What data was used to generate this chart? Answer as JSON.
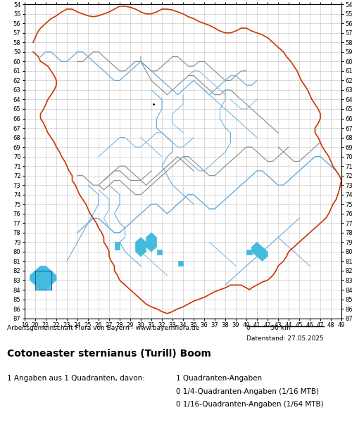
{
  "title": "Cotoneaster sternianus (Turill) Boom",
  "attribution": "Arbeitsgemeinschaft Flora von Bayern - www.bayernflora.de",
  "scale_label": "0          50 km",
  "date_label": "Datenstand: 27.05.2025",
  "stats_line1": "1 Angaben aus 1 Quadranten, davon:",
  "stats_col2_line1": "1 Quadranten-Angaben",
  "stats_col2_line2": "0 1/4-Quadranten-Angaben (1/16 MTB)",
  "stats_col2_line3": "0 1/16-Quadranten-Angaben (1/64 MTB)",
  "x_ticks": [
    19,
    20,
    21,
    22,
    23,
    24,
    25,
    26,
    27,
    28,
    29,
    30,
    31,
    32,
    33,
    34,
    35,
    36,
    37,
    38,
    39,
    40,
    41,
    42,
    43,
    44,
    45,
    46,
    47,
    48,
    49
  ],
  "y_ticks": [
    54,
    55,
    56,
    57,
    58,
    59,
    60,
    61,
    62,
    63,
    64,
    65,
    66,
    67,
    68,
    69,
    70,
    71,
    72,
    73,
    74,
    75,
    76,
    77,
    78,
    79,
    80,
    81,
    82,
    83,
    84,
    85,
    86,
    87
  ],
  "map_xlim": [
    19,
    49
  ],
  "map_ylim": [
    54,
    87
  ],
  "grid_color": "#cccccc",
  "background_color": "#ffffff",
  "outer_border_color": "#cc3300",
  "district_border_color": "#888888",
  "river_color": "#66aadd",
  "lake_color": "#44bbdd",
  "occurrence_color": "#44bbdd",
  "occurrence_border": "#0055aa",
  "font_family": "DejaVu Sans"
}
